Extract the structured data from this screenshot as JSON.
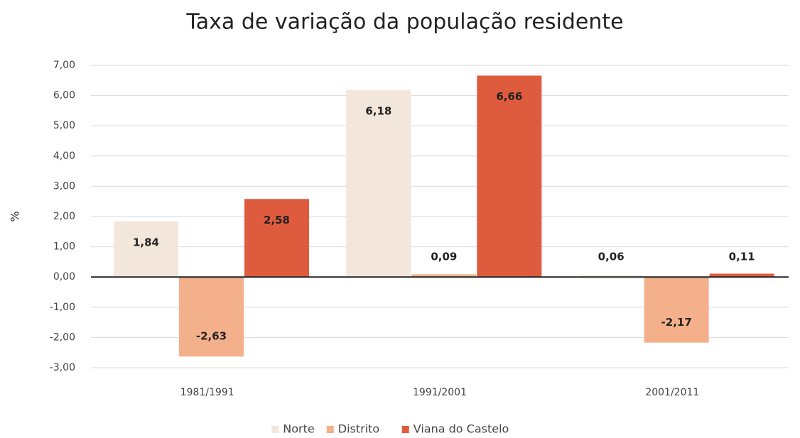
{
  "chart_data": {
    "type": "bar",
    "title": "Taxa de variação da população residente",
    "y_label": "%",
    "categories": [
      "1981/1991",
      "1991/2001",
      "2001/2011"
    ],
    "series": [
      {
        "name": "Norte",
        "color": "#f3e6da",
        "values": [
          1.84,
          6.18,
          0.06
        ],
        "value_labels": [
          "1,84",
          "6,18",
          "0,06"
        ]
      },
      {
        "name": "Distrito",
        "color": "#f4b08a",
        "values": [
          -2.63,
          0.09,
          -2.17
        ],
        "value_labels": [
          "-2,63",
          "0,09",
          "-2,17"
        ]
      },
      {
        "name": "Viana do Castelo",
        "color": "#de5b3e",
        "values": [
          2.58,
          6.66,
          0.11
        ],
        "value_labels": [
          "2,58",
          "6,66",
          "0,11"
        ]
      }
    ],
    "ylim": [
      -3,
      7
    ],
    "yticks": [
      {
        "value": -3,
        "label": "-3,00"
      },
      {
        "value": -2,
        "label": "-2,00"
      },
      {
        "value": -1,
        "label": "-1,00"
      },
      {
        "value": 0,
        "label": "0,00"
      },
      {
        "value": 1,
        "label": "1,00"
      },
      {
        "value": 2,
        "label": "2,00"
      },
      {
        "value": 3,
        "label": "3,00"
      },
      {
        "value": 4,
        "label": "4,00"
      },
      {
        "value": 5,
        "label": "5,00"
      },
      {
        "value": 6,
        "label": "6,00"
      },
      {
        "value": 7,
        "label": "7,00"
      }
    ],
    "grid": true
  }
}
